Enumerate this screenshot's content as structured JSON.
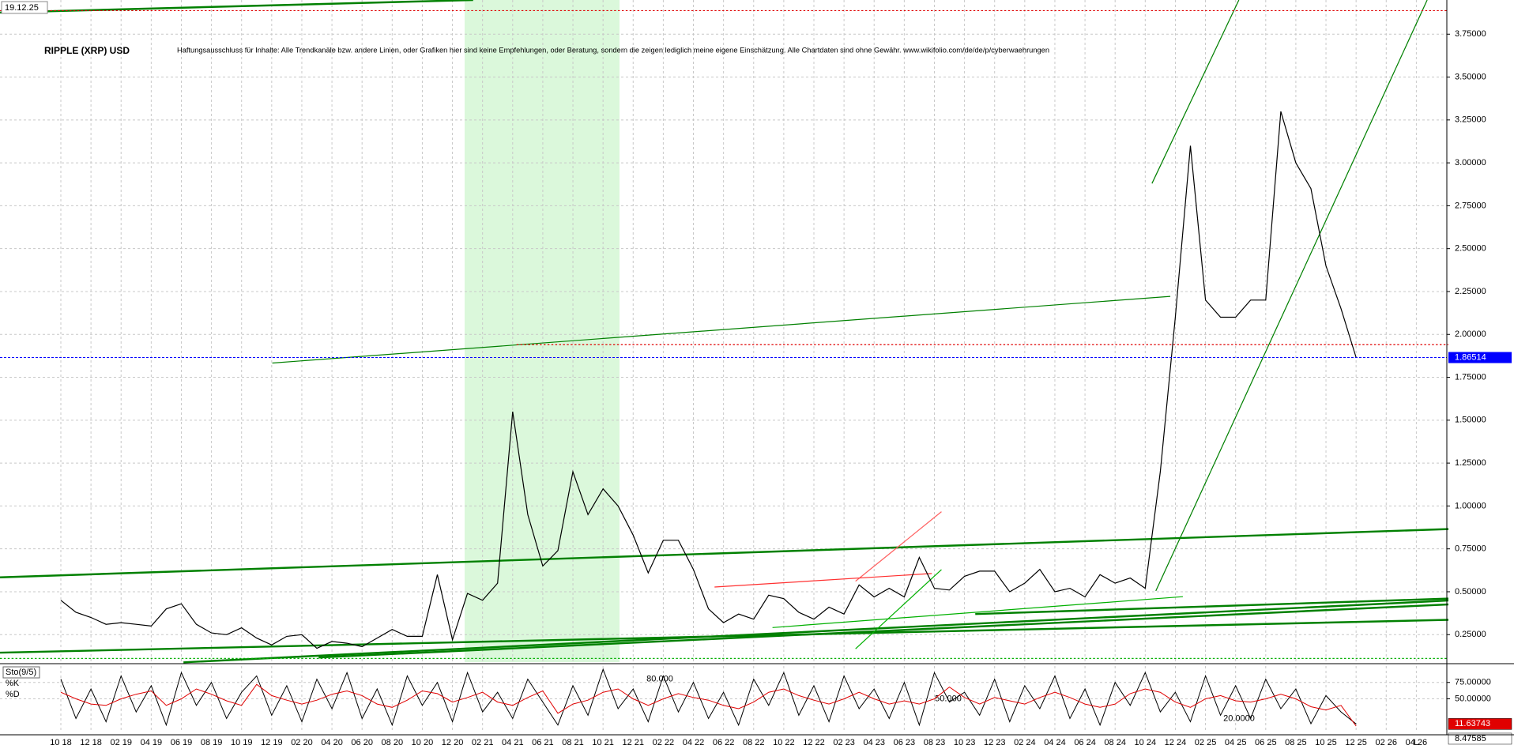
{
  "chart_data": [
    {
      "type": "line",
      "title": "RIPPLE (XRP) USD",
      "subtitle": "Haftungsausschluss für Inhalte: Alle Trendkanäle bzw. andere Linien, oder Grafiken hier sind keine Empfehlungen, oder Beratung, sondern die zeigen lediglich meine eigene Einschätzung. Alle Chartdaten sind ohne Gewähr.  www.wikifolio.com/de/de/p/cyberwaehrungen",
      "date": "19.12.25",
      "corner_label": "L",
      "categories": [
        "10 18",
        null,
        "12 18",
        null,
        "02 19",
        null,
        "04 19",
        null,
        "06 19",
        null,
        "08 19",
        null,
        "10 19",
        null,
        "12 19",
        null,
        "02 20",
        null,
        "04 20",
        null,
        "06 20",
        null,
        "08 20",
        null,
        "10 20",
        null,
        "12 20",
        null,
        "02 21",
        null,
        "04 21",
        null,
        "06 21",
        null,
        "08 21",
        null,
        "10 21",
        null,
        "12 21",
        null,
        "02 22",
        null,
        "04 22",
        null,
        "06 22",
        null,
        "08 22",
        null,
        "10 22",
        null,
        "12 22",
        null,
        "02 23",
        null,
        "04 23",
        null,
        "06 23",
        null,
        "08 23",
        null,
        "10 23",
        null,
        "12 23",
        null,
        "02 24",
        null,
        "04 24",
        null,
        "06 24",
        null,
        "08 24",
        null,
        "10 24",
        null,
        "12 24",
        null,
        "02 25",
        null,
        "04 25",
        null,
        "06 25",
        null,
        "08 25",
        null,
        "10 25",
        null,
        "12 25",
        null,
        "02 26",
        null,
        "04 26"
      ],
      "values": [
        0.45,
        0.38,
        0.35,
        0.31,
        0.32,
        0.31,
        0.3,
        0.4,
        0.43,
        0.31,
        0.26,
        0.25,
        0.29,
        0.23,
        0.19,
        0.24,
        0.25,
        0.17,
        0.21,
        0.2,
        0.18,
        0.23,
        0.28,
        0.24,
        0.24,
        0.6,
        0.22,
        0.49,
        0.45,
        0.55,
        1.55,
        0.95,
        0.65,
        0.74,
        1.2,
        0.95,
        1.1,
        1.0,
        0.83,
        0.61,
        0.8,
        0.8,
        0.63,
        0.4,
        0.32,
        0.37,
        0.34,
        0.48,
        0.46,
        0.38,
        0.34,
        0.41,
        0.37,
        0.54,
        0.47,
        0.52,
        0.47,
        0.7,
        0.52,
        0.51,
        0.59,
        0.62,
        0.62,
        0.5,
        0.55,
        0.63,
        0.5,
        0.52,
        0.47,
        0.6,
        0.55,
        0.58,
        0.52,
        1.2,
        2.1,
        3.1,
        2.2,
        2.1,
        2.1,
        2.2,
        2.2,
        3.3,
        3.0,
        2.85,
        2.4,
        2.15,
        1.86514,
        null,
        null,
        null,
        null
      ],
      "color": "#000000",
      "last_color": "#0000ff",
      "ylim": [
        0.09,
        3.94
      ],
      "yticks": [
        {
          "value": 0.25,
          "label": "0.25000"
        },
        {
          "value": 0.5,
          "label": "0.50000"
        },
        {
          "value": 0.75,
          "label": "0.75000"
        },
        {
          "value": 1.0,
          "label": "1.00000"
        },
        {
          "value": 1.25,
          "label": "1.25000"
        },
        {
          "value": 1.5,
          "label": "1.50000"
        },
        {
          "value": 1.75,
          "label": "1.75000"
        },
        {
          "value": 2.0,
          "label": "2.00000"
        },
        {
          "value": 2.25,
          "label": "2.25000"
        },
        {
          "value": 2.5,
          "label": "2.50000"
        },
        {
          "value": 2.75,
          "label": "2.75000"
        },
        {
          "value": 3.0,
          "label": "3.00000"
        },
        {
          "value": 3.25,
          "label": "3.25000"
        },
        {
          "value": 3.5,
          "label": "3.50000"
        },
        {
          "value": 3.75,
          "label": "3.75000"
        }
      ],
      "grid": true
    },
    {
      "type": "line",
      "title": "Sto(9/5)",
      "series": [
        {
          "name": "%K",
          "color": "#000000",
          "values": [
            80,
            20,
            65,
            15,
            85,
            30,
            70,
            10,
            90,
            40,
            75,
            20,
            60,
            85,
            25,
            70,
            15,
            80,
            35,
            90,
            20,
            65,
            10,
            85,
            40,
            75,
            15,
            90,
            30,
            60,
            20,
            80,
            45,
            10,
            70,
            25,
            95,
            35,
            65,
            15,
            85,
            30,
            75,
            20,
            60,
            10,
            80,
            40,
            90,
            25,
            70,
            15,
            85,
            35,
            65,
            20,
            75,
            10,
            90,
            45,
            60,
            25,
            80,
            15,
            70,
            35,
            85,
            20,
            65,
            10,
            75,
            40,
            90,
            30,
            60,
            15,
            85,
            25,
            70,
            20,
            80,
            35,
            65,
            12,
            55,
            30,
            11.63743,
            null,
            null,
            null,
            null
          ]
        },
        {
          "name": "%D",
          "color": "#e00000",
          "values": [
            60,
            50,
            42,
            40,
            50,
            57,
            62,
            40,
            50,
            65,
            57,
            47,
            40,
            72,
            55,
            48,
            42,
            48,
            57,
            62,
            55,
            42,
            37,
            48,
            62,
            58,
            45,
            52,
            60,
            45,
            40,
            52,
            62,
            28,
            42,
            48,
            60,
            65,
            50,
            40,
            50,
            58,
            52,
            48,
            40,
            35,
            45,
            60,
            65,
            55,
            48,
            42,
            50,
            60,
            50,
            42,
            47,
            42,
            50,
            68,
            52,
            42,
            52,
            47,
            42,
            52,
            60,
            52,
            42,
            37,
            42,
            58,
            65,
            60,
            45,
            37,
            50,
            55,
            47,
            45,
            50,
            57,
            50,
            38,
            33,
            40,
            8.47585,
            null,
            null,
            null,
            null
          ]
        }
      ],
      "ylim": [
        0,
        100
      ],
      "yticks": [
        {
          "value": 75,
          "label": "75.00000"
        },
        {
          "value": 50,
          "label": "50.00000"
        }
      ],
      "level_labels": [
        {
          "value": 80,
          "label": "80.000"
        },
        {
          "value": 50,
          "label": "50.000"
        },
        {
          "value": 20,
          "label": "20.0000"
        }
      ],
      "grid": true
    }
  ]
}
